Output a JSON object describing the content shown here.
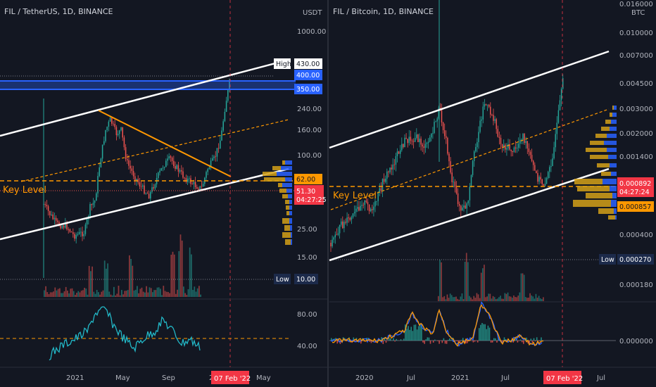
{
  "colors": {
    "background": "#131722",
    "axis_text": "#b2b5be",
    "grid": "#1e222d",
    "up": "#26a69a",
    "down": "#ef5350",
    "oscillator": "#22b8c7",
    "channel": "#ffffff",
    "trend": "#ff9800",
    "highlight_red": "#f23645",
    "highlight_blue": "#2962ff",
    "orange_label": "#ff9800",
    "navy_label": "#1c2a4a"
  },
  "chart_data": [
    {
      "type": "candlestick",
      "title": "FIL / TetherUS, 1D, BINANCE",
      "currency": "USDT",
      "y_scale": "log",
      "y_tick_labels": [
        "1000.00",
        "240.00",
        "160.00",
        "100.00",
        "25.00",
        "15.00"
      ],
      "x_tick_labels": [
        "2021",
        "May",
        "Sep",
        "2",
        "May"
      ],
      "cursor_date": "07 Feb '22",
      "price_labels": {
        "high": {
          "label": "High",
          "value": "430.00"
        },
        "zone_top": "400.00",
        "zone_bottom": "350.00",
        "level": "62.00",
        "last": "51.30",
        "countdown": "04:27:25",
        "low": {
          "label": "Low",
          "value": "10.00"
        }
      },
      "annotations": [
        "Key Level"
      ],
      "oscillator": {
        "tick_labels": [
          "80.00",
          "40.00"
        ],
        "reference_level": 50
      }
    },
    {
      "type": "candlestick",
      "title": "FIL / Bitcoin, 1D, BINANCE",
      "currency": "BTC",
      "y_scale": "log",
      "y_tick_labels": [
        "0.016000",
        "0.010000",
        "0.007000",
        "0.004500",
        "0.003000",
        "0.002000",
        "0.001400",
        "0.000400",
        "0.000180",
        "0.000000"
      ],
      "x_tick_labels": [
        "2020",
        "Jul",
        "2021",
        "Jul",
        "Jul"
      ],
      "cursor_date": "07 Feb '22",
      "price_labels": {
        "last": "0.000892",
        "countdown": "04:27:24",
        "level": "0.000857",
        "low": {
          "label": "Low",
          "value": "0.000270"
        }
      },
      "annotations": [
        "Key Level"
      ]
    }
  ]
}
